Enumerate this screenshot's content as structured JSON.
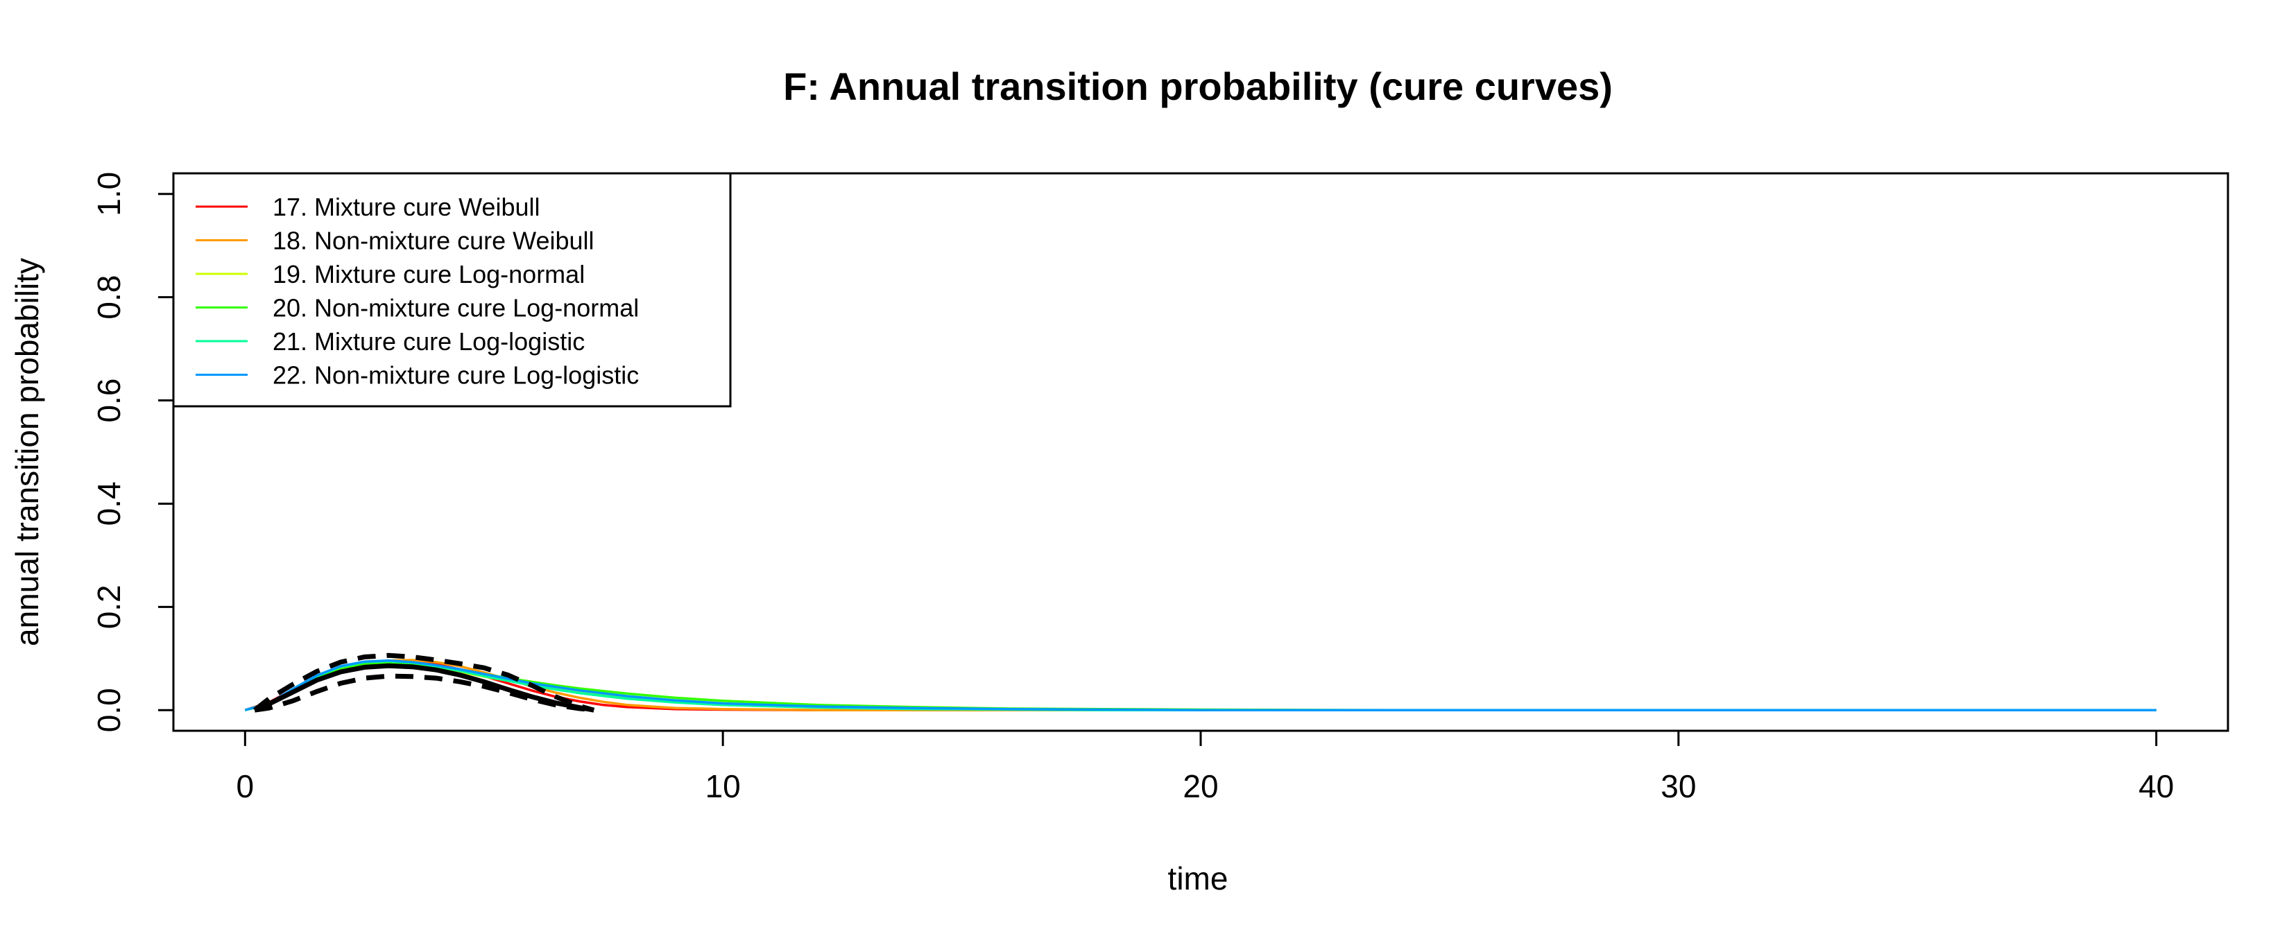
{
  "chart_data": {
    "type": "line",
    "title": "F: Annual transition probability (cure curves)",
    "xlabel": "time",
    "ylabel": "annual transition probability",
    "xlim": [
      -1.5,
      41.5
    ],
    "ylim": [
      -0.04,
      1.04
    ],
    "xticks": [
      0,
      10,
      20,
      30,
      40
    ],
    "yticks": [
      0.0,
      0.2,
      0.4,
      0.6,
      0.8,
      1.0
    ],
    "ytick_labels": [
      "0.0",
      "0.2",
      "0.4",
      "0.6",
      "0.8",
      "1.0"
    ],
    "grid": false,
    "legend_position": "top-left",
    "series": [
      {
        "name": "17. Mixture cure Weibull",
        "color": "#FF0000",
        "x": [
          0,
          0.5,
          1,
          1.5,
          2,
          2.5,
          3,
          3.5,
          4,
          4.5,
          5,
          5.5,
          6,
          6.5,
          7,
          7.5,
          8,
          9,
          10,
          12,
          14,
          16,
          20,
          24,
          30,
          40
        ],
        "y": [
          0.0,
          0.015,
          0.04,
          0.062,
          0.08,
          0.091,
          0.096,
          0.095,
          0.089,
          0.079,
          0.066,
          0.052,
          0.038,
          0.026,
          0.017,
          0.01,
          0.006,
          0.002,
          0.001,
          0.0,
          0.0,
          0.0,
          0.0,
          0.0,
          0.0,
          0.0
        ]
      },
      {
        "name": "18. Non-mixture cure Weibull",
        "color": "#FF9900",
        "x": [
          0,
          0.5,
          1,
          1.5,
          2,
          2.5,
          3,
          3.5,
          4,
          4.5,
          5,
          5.5,
          6,
          6.5,
          7,
          7.5,
          8,
          9,
          10,
          12,
          14,
          16,
          20,
          24,
          30,
          40
        ],
        "y": [
          0.0,
          0.014,
          0.038,
          0.06,
          0.078,
          0.09,
          0.096,
          0.097,
          0.093,
          0.085,
          0.073,
          0.06,
          0.046,
          0.034,
          0.024,
          0.016,
          0.01,
          0.004,
          0.002,
          0.0,
          0.0,
          0.0,
          0.0,
          0.0,
          0.0,
          0.0
        ]
      },
      {
        "name": "19. Mixture cure Log-normal",
        "color": "#CCFF00",
        "x": [
          0,
          0.5,
          1,
          1.5,
          2,
          2.5,
          3,
          3.5,
          4,
          4.5,
          5,
          5.5,
          6,
          6.5,
          7,
          8,
          9,
          10,
          12,
          14,
          16,
          18,
          20,
          24,
          30,
          40
        ],
        "y": [
          0.0,
          0.012,
          0.038,
          0.063,
          0.08,
          0.089,
          0.091,
          0.088,
          0.082,
          0.074,
          0.065,
          0.057,
          0.049,
          0.042,
          0.036,
          0.026,
          0.019,
          0.013,
          0.007,
          0.004,
          0.002,
          0.001,
          0.0,
          0.0,
          0.0,
          0.0
        ]
      },
      {
        "name": "20. Non-mixture cure Log-normal",
        "color": "#33FF00",
        "x": [
          0,
          0.5,
          1,
          1.5,
          2,
          2.5,
          3,
          3.5,
          4,
          4.5,
          5,
          5.5,
          6,
          6.5,
          7,
          8,
          9,
          10,
          12,
          14,
          16,
          18,
          20,
          24,
          30,
          40
        ],
        "y": [
          0.0,
          0.011,
          0.036,
          0.061,
          0.079,
          0.089,
          0.092,
          0.09,
          0.085,
          0.078,
          0.07,
          0.062,
          0.055,
          0.048,
          0.042,
          0.032,
          0.024,
          0.018,
          0.01,
          0.006,
          0.003,
          0.002,
          0.001,
          0.0,
          0.0,
          0.0
        ]
      },
      {
        "name": "21. Mixture cure Log-logistic",
        "color": "#00FF99",
        "x": [
          0,
          0.5,
          1,
          1.5,
          2,
          2.5,
          3,
          3.5,
          4,
          4.5,
          5,
          5.5,
          6,
          6.5,
          7,
          8,
          9,
          10,
          12,
          14,
          16,
          18,
          20,
          24,
          30,
          40
        ],
        "y": [
          0.0,
          0.013,
          0.04,
          0.066,
          0.084,
          0.093,
          0.095,
          0.092,
          0.085,
          0.076,
          0.066,
          0.057,
          0.048,
          0.04,
          0.033,
          0.022,
          0.015,
          0.01,
          0.005,
          0.002,
          0.001,
          0.0,
          0.0,
          0.0,
          0.0,
          0.0
        ]
      },
      {
        "name": "22. Non-mixture cure Log-logistic",
        "color": "#0099FF",
        "x": [
          0,
          0.5,
          1,
          1.5,
          2,
          2.5,
          3,
          3.5,
          4,
          4.5,
          5,
          5.5,
          6,
          6.5,
          7,
          8,
          9,
          10,
          12,
          14,
          16,
          18,
          20,
          24,
          30,
          40
        ],
        "y": [
          0.0,
          0.013,
          0.041,
          0.067,
          0.085,
          0.094,
          0.096,
          0.093,
          0.087,
          0.079,
          0.07,
          0.061,
          0.052,
          0.045,
          0.038,
          0.027,
          0.019,
          0.013,
          0.007,
          0.004,
          0.002,
          0.001,
          0.0,
          0.0,
          0.0,
          0.0
        ]
      }
    ],
    "observed": {
      "color": "#000000",
      "estimate": {
        "x": [
          0.2,
          0.5,
          1,
          1.5,
          2,
          2.5,
          3,
          3.5,
          4,
          4.5,
          5,
          5.5,
          6,
          6.5,
          7,
          7.3
        ],
        "y": [
          0.0,
          0.012,
          0.035,
          0.058,
          0.074,
          0.083,
          0.086,
          0.084,
          0.078,
          0.068,
          0.055,
          0.04,
          0.026,
          0.014,
          0.005,
          0.0
        ]
      },
      "upper": {
        "x": [
          0.2,
          0.5,
          1,
          1.5,
          2,
          2.5,
          3,
          3.5,
          4,
          4.5,
          5,
          5.5,
          6,
          6.5,
          7,
          7.3
        ],
        "y": [
          0.0,
          0.022,
          0.05,
          0.075,
          0.093,
          0.103,
          0.106,
          0.103,
          0.097,
          0.09,
          0.082,
          0.068,
          0.048,
          0.026,
          0.008,
          0.0
        ]
      },
      "lower": {
        "x": [
          0.2,
          0.5,
          1,
          1.5,
          2,
          2.5,
          3,
          3.5,
          4,
          4.5,
          5,
          5.5,
          6,
          6.5,
          7,
          7.3
        ],
        "y": [
          0.0,
          0.004,
          0.018,
          0.036,
          0.052,
          0.062,
          0.066,
          0.065,
          0.062,
          0.055,
          0.046,
          0.034,
          0.021,
          0.01,
          0.003,
          0.0
        ]
      }
    }
  }
}
